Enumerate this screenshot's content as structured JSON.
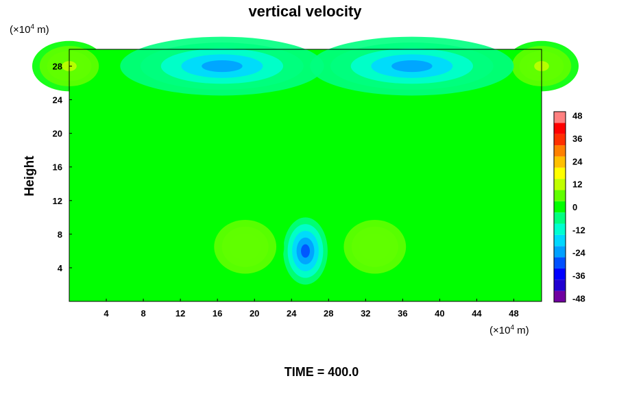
{
  "chart_data": {
    "type": "heatmap",
    "title": "vertical velocity",
    "xlabel": "",
    "ylabel": "Height",
    "x_unit_label": "(×10",
    "x_unit_exp": "4",
    "x_unit_tail": " m)",
    "y_unit_label": "(×10",
    "y_unit_exp": "4",
    "y_unit_tail": " m)",
    "xlim": [
      0,
      51
    ],
    "ylim": [
      0,
      30
    ],
    "x_ticks": [
      4,
      8,
      12,
      16,
      20,
      24,
      28,
      32,
      36,
      40,
      44,
      48
    ],
    "y_ticks": [
      4,
      8,
      12,
      16,
      20,
      24,
      28
    ],
    "colorbar": {
      "min": -50,
      "max": 50,
      "tick_values": [
        48,
        36,
        24,
        12,
        0,
        -12,
        -24,
        -36,
        -48
      ],
      "tick_labels": [
        "48",
        "36",
        "24",
        "12",
        "0",
        "-12",
        "-24",
        "-36",
        "-48"
      ],
      "colors": [
        "#7000a0",
        "#2000d0",
        "#0000ff",
        "#0050ff",
        "#00a0ff",
        "#00d8ff",
        "#00ffd0",
        "#00ff80",
        "#00ff00",
        "#60ff00",
        "#c0ff00",
        "#ffff00",
        "#ffc000",
        "#ff8000",
        "#ff3000",
        "#ff0000",
        "#ff8080"
      ]
    },
    "features": [
      {
        "kind": "updraft",
        "x": 0,
        "y": 28,
        "value": 10
      },
      {
        "kind": "updraft",
        "x": 51,
        "y": 28,
        "value": 10
      },
      {
        "kind": "downdraft",
        "x": 16.5,
        "y": 28,
        "value": -22
      },
      {
        "kind": "downdraft",
        "x": 37,
        "y": 28,
        "value": -22
      },
      {
        "kind": "downdraft",
        "x": 25.5,
        "y": 6,
        "value": -30
      },
      {
        "kind": "updraft",
        "x": 19,
        "y": 6.5,
        "value": 8
      },
      {
        "kind": "updraft",
        "x": 33,
        "y": 6.5,
        "value": 8
      }
    ]
  },
  "footer": {
    "time_label": "TIME = 400.0"
  }
}
